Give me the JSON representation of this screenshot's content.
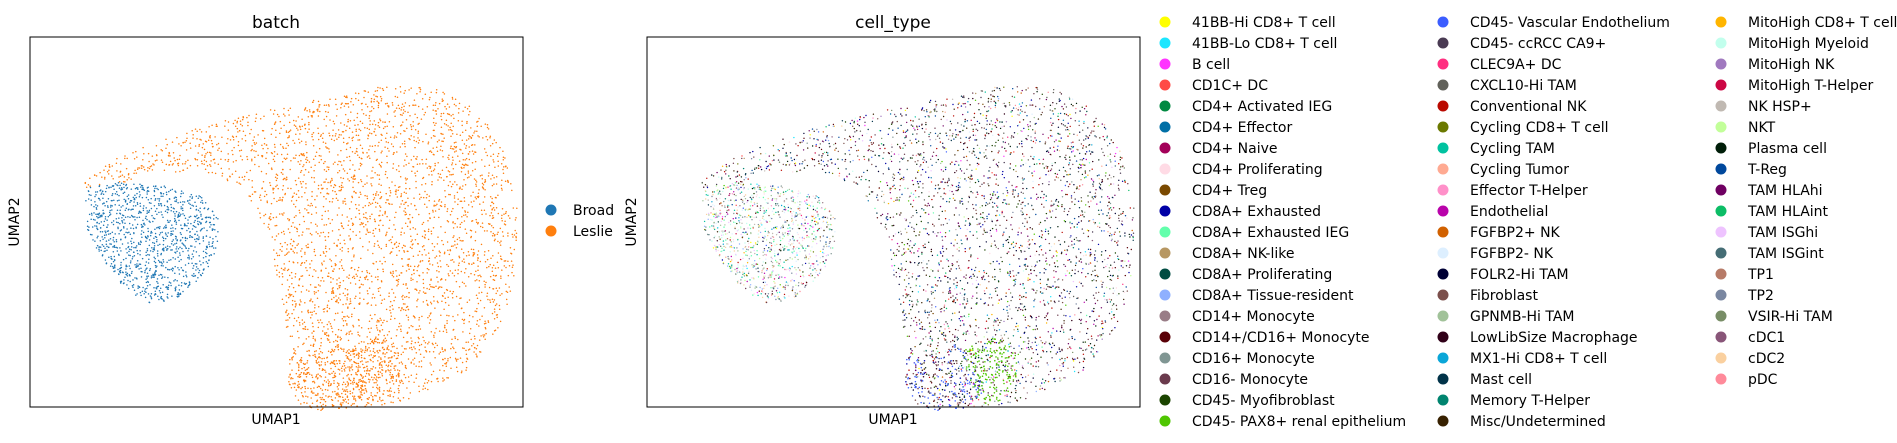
{
  "chart_data": [
    {
      "type": "scatter",
      "title": "batch",
      "xlabel": "UMAP1",
      "ylabel": "UMAP2",
      "ticks": "none",
      "legend_position": "right",
      "series": [
        {
          "name": "Broad",
          "color": "#1f77b4",
          "region": "left-lobe"
        },
        {
          "name": "Leslie",
          "color": "#ff7f0e",
          "region": "main-body-and-lower-lobes"
        }
      ]
    },
    {
      "type": "scatter",
      "title": "cell_type",
      "xlabel": "UMAP1",
      "ylabel": "UMAP2",
      "ticks": "none",
      "legend_position": "right",
      "legend_columns": 3,
      "series": [
        {
          "name": "41BB-Hi CD8+ T cell",
          "color": "#ffff00"
        },
        {
          "name": "41BB-Lo CD8+ T cell",
          "color": "#1ce6ff"
        },
        {
          "name": "B cell",
          "color": "#ff34ff"
        },
        {
          "name": "CD1C+ DC",
          "color": "#ff4a46"
        },
        {
          "name": "CD4+ Activated IEG",
          "color": "#008941"
        },
        {
          "name": "CD4+ Effector",
          "color": "#006fa6"
        },
        {
          "name": "CD4+ Naive",
          "color": "#a30059"
        },
        {
          "name": "CD4+ Proliferating",
          "color": "#ffdbe5"
        },
        {
          "name": "CD4+ Treg",
          "color": "#7a4900"
        },
        {
          "name": "CD8A+ Exhausted",
          "color": "#0000a6"
        },
        {
          "name": "CD8A+ Exhausted IEG",
          "color": "#63ffac"
        },
        {
          "name": "CD8A+ NK-like",
          "color": "#b79762"
        },
        {
          "name": "CD8A+ Proliferating",
          "color": "#004d43"
        },
        {
          "name": "CD8A+ Tissue-resident",
          "color": "#8fb0ff"
        },
        {
          "name": "CD14+ Monocyte",
          "color": "#997d87"
        },
        {
          "name": "CD14+/CD16+ Monocyte",
          "color": "#5a0007"
        },
        {
          "name": "CD16+ Monocyte",
          "color": "#809693"
        },
        {
          "name": "CD16- Monocyte",
          "color": "#6a3a4c"
        },
        {
          "name": "CD45- Myofibroblast",
          "color": "#1b4400"
        },
        {
          "name": "CD45- PAX8+ renal epithelium",
          "color": "#4fc601"
        },
        {
          "name": "CD45- Vascular Endothelium",
          "color": "#3b5dff"
        },
        {
          "name": "CD45- ccRCC CA9+",
          "color": "#4a3b53"
        },
        {
          "name": "CLEC9A+ DC",
          "color": "#ff2f80"
        },
        {
          "name": "CXCL10-Hi TAM",
          "color": "#61615a"
        },
        {
          "name": "Conventional NK",
          "color": "#ba0900"
        },
        {
          "name": "Cycling CD8+ T cell",
          "color": "#6b7900"
        },
        {
          "name": "Cycling TAM",
          "color": "#00c2a0"
        },
        {
          "name": "Cycling Tumor",
          "color": "#ffaa92"
        },
        {
          "name": "Effector T-Helper",
          "color": "#ff90c9"
        },
        {
          "name": "Endothelial",
          "color": "#b903aa"
        },
        {
          "name": "FGFBP2+ NK",
          "color": "#d16100"
        },
        {
          "name": "FGFBP2- NK",
          "color": "#ddefff"
        },
        {
          "name": "FOLR2-Hi TAM",
          "color": "#000035"
        },
        {
          "name": "Fibroblast",
          "color": "#7b4f4b"
        },
        {
          "name": "GPNMB-Hi TAM",
          "color": "#a1c299"
        },
        {
          "name": "LowLibSize Macrophage",
          "color": "#300018"
        },
        {
          "name": "MX1-Hi CD8+ T cell",
          "color": "#0aa6d8"
        },
        {
          "name": "Mast cell",
          "color": "#013349"
        },
        {
          "name": "Memory T-Helper",
          "color": "#00846f"
        },
        {
          "name": "Misc/Undetermined",
          "color": "#372101"
        },
        {
          "name": "MitoHigh CD8+ T cell",
          "color": "#ffb500"
        },
        {
          "name": "MitoHigh Myeloid",
          "color": "#c2ffed"
        },
        {
          "name": "MitoHigh NK",
          "color": "#a079bf"
        },
        {
          "name": "MitoHigh T-Helper",
          "color": "#cc0744"
        },
        {
          "name": "NK HSP+",
          "color": "#c0b9b2"
        },
        {
          "name": "NKT",
          "color": "#c2ff99"
        },
        {
          "name": "Plasma cell",
          "color": "#001e09"
        },
        {
          "name": "T-Reg",
          "color": "#00489c"
        },
        {
          "name": "TAM HLAhi",
          "color": "#6f0062"
        },
        {
          "name": "TAM HLAint",
          "color": "#0cbd66"
        },
        {
          "name": "TAM ISGhi",
          "color": "#eec3ff"
        },
        {
          "name": "TAM ISGint",
          "color": "#456d75"
        },
        {
          "name": "TP1",
          "color": "#b77b68"
        },
        {
          "name": "TP2",
          "color": "#7a87a1"
        },
        {
          "name": "VSIR-Hi TAM",
          "color": "#788d66"
        },
        {
          "name": "cDC1",
          "color": "#885578"
        },
        {
          "name": "cDC2",
          "color": "#fad09f"
        },
        {
          "name": "pDC",
          "color": "#ff8a9a"
        }
      ]
    }
  ]
}
